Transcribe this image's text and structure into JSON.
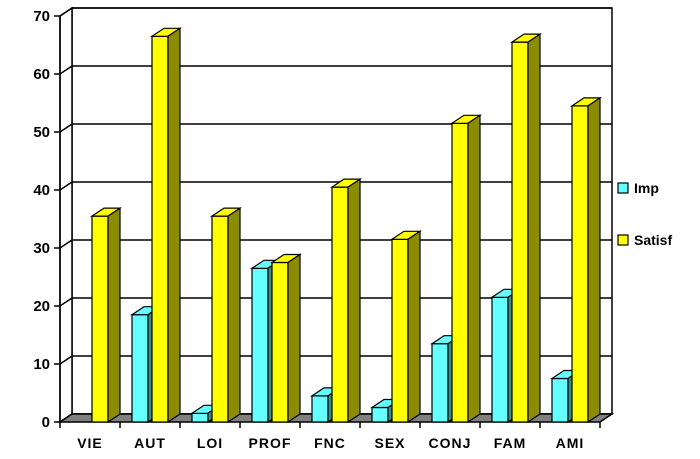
{
  "chart_data": {
    "type": "bar",
    "categories": [
      "VIE",
      "AUT",
      "LOI",
      "PROF",
      "FNC",
      "SEX",
      "CONJ",
      "FAM",
      "AMI"
    ],
    "series": [
      {
        "name": "Imp",
        "values": [
          0,
          18.5,
          1.5,
          26.5,
          4.5,
          2.5,
          13.5,
          21.5,
          7.5
        ],
        "color": "#66ffff"
      },
      {
        "name": "Satisf",
        "values": [
          35.5,
          66.5,
          35.5,
          27.5,
          40.5,
          31.5,
          51.5,
          65.5,
          54.5
        ],
        "color": "#ffff00"
      }
    ],
    "yticks": [
      "0",
      "10",
      "20",
      "30",
      "40",
      "50",
      "60",
      "70"
    ],
    "ylim": [
      0,
      70
    ],
    "grid": true,
    "legend_position": "right",
    "title": "",
    "xlabel": "",
    "ylabel": ""
  }
}
